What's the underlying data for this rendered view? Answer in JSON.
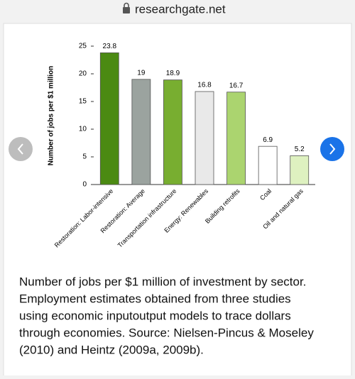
{
  "url": "researchgate.net",
  "chart_data": {
    "type": "bar",
    "ylabel": "Number of jobs per $1 million",
    "categories": [
      "Restoration: Labor-intensive",
      "Restoration: Average",
      "Transportation infrastructure",
      "Energy: Renewables",
      "Building retrofits",
      "Coal",
      "Oil and natural gas"
    ],
    "values": [
      23.8,
      19,
      18.9,
      16.8,
      16.7,
      6.9,
      5.2
    ],
    "colors": [
      "#4b8a12",
      "#9ba39f",
      "#78ae30",
      "#e9e9e9",
      "#abd46f",
      "#ffffff",
      "#def1c0"
    ],
    "ylim": [
      0,
      25
    ],
    "yticks": [
      0,
      5,
      10,
      15,
      20,
      25
    ]
  },
  "caption": [
    "Number of jobs per $1 million of investment by sector.",
    "Employment estimates obtained from three studies",
    "using economic inputoutput models to trace dollars",
    "through economies. Source: Nielsen-Pincus & Moseley",
    "(2010) and Heintz (2009a, 2009b)."
  ]
}
